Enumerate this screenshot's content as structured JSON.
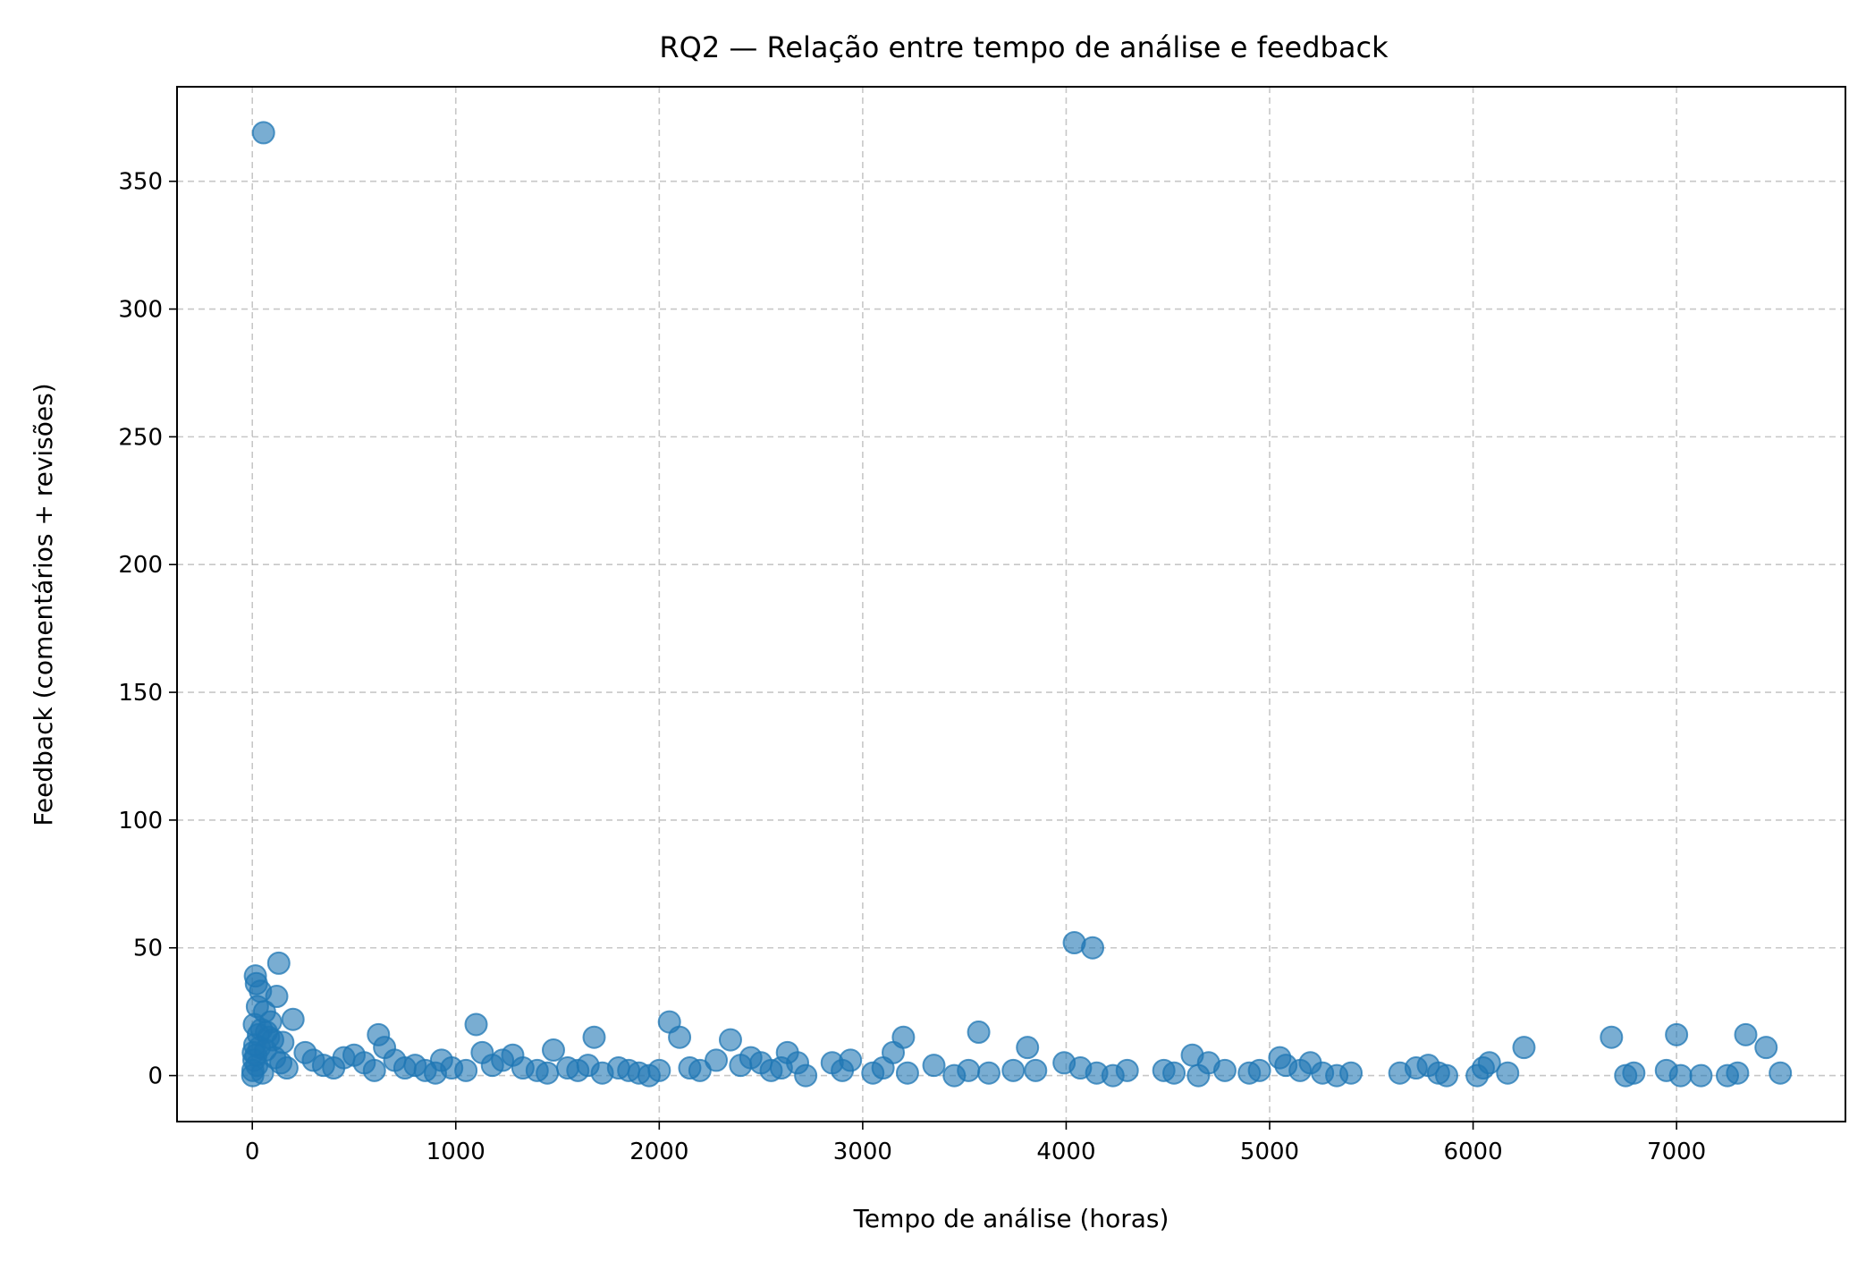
{
  "chart_data": {
    "type": "scatter",
    "title": "RQ2 — Relação entre tempo de análise e feedback",
    "xlabel": "Tempo de análise (horas)",
    "ylabel": "Feedback (comentários + revisões)",
    "xlim": [
      -370,
      7830
    ],
    "ylim": [
      -18,
      387
    ],
    "xticks": [
      0,
      1000,
      2000,
      3000,
      4000,
      5000,
      6000,
      7000
    ],
    "yticks": [
      0,
      50,
      100,
      150,
      200,
      250,
      300,
      350
    ],
    "grid": true,
    "color": "#1f77b4",
    "points": [
      [
        55,
        369
      ],
      [
        4040,
        52
      ],
      [
        4130,
        50
      ],
      [
        130,
        44
      ],
      [
        15,
        39
      ],
      [
        20,
        36
      ],
      [
        40,
        33
      ],
      [
        120,
        31
      ],
      [
        25,
        27
      ],
      [
        60,
        25
      ],
      [
        200,
        22
      ],
      [
        90,
        21
      ],
      [
        10,
        20
      ],
      [
        45,
        18
      ],
      [
        70,
        17
      ],
      [
        30,
        16
      ],
      [
        80,
        15
      ],
      [
        100,
        14
      ],
      [
        150,
        13
      ],
      [
        12,
        12
      ],
      [
        35,
        11
      ],
      [
        65,
        10
      ],
      [
        5,
        9
      ],
      [
        18,
        8
      ],
      [
        110,
        7
      ],
      [
        8,
        6
      ],
      [
        140,
        5
      ],
      [
        22,
        4
      ],
      [
        170,
        3
      ],
      [
        3,
        2
      ],
      [
        50,
        1
      ],
      [
        2,
        0
      ],
      [
        260,
        9
      ],
      [
        300,
        6
      ],
      [
        350,
        4
      ],
      [
        400,
        3
      ],
      [
        450,
        7
      ],
      [
        500,
        8
      ],
      [
        550,
        5
      ],
      [
        600,
        2
      ],
      [
        620,
        16
      ],
      [
        650,
        11
      ],
      [
        700,
        6
      ],
      [
        750,
        3
      ],
      [
        800,
        4
      ],
      [
        850,
        2
      ],
      [
        900,
        1
      ],
      [
        930,
        6
      ],
      [
        980,
        3
      ],
      [
        1050,
        2
      ],
      [
        1100,
        20
      ],
      [
        1130,
        9
      ],
      [
        1180,
        4
      ],
      [
        1230,
        6
      ],
      [
        1280,
        8
      ],
      [
        1330,
        3
      ],
      [
        1400,
        2
      ],
      [
        1450,
        1
      ],
      [
        1480,
        10
      ],
      [
        1550,
        3
      ],
      [
        1600,
        2
      ],
      [
        1650,
        4
      ],
      [
        1680,
        15
      ],
      [
        1720,
        1
      ],
      [
        1800,
        3
      ],
      [
        1850,
        2
      ],
      [
        1900,
        1
      ],
      [
        1950,
        0
      ],
      [
        2000,
        2
      ],
      [
        2050,
        21
      ],
      [
        2100,
        15
      ],
      [
        2150,
        3
      ],
      [
        2200,
        2
      ],
      [
        2280,
        6
      ],
      [
        2350,
        14
      ],
      [
        2400,
        4
      ],
      [
        2450,
        7
      ],
      [
        2500,
        5
      ],
      [
        2550,
        2
      ],
      [
        2600,
        3
      ],
      [
        2630,
        9
      ],
      [
        2680,
        5
      ],
      [
        2720,
        0
      ],
      [
        2850,
        5
      ],
      [
        2900,
        2
      ],
      [
        2940,
        6
      ],
      [
        3050,
        1
      ],
      [
        3100,
        3
      ],
      [
        3150,
        9
      ],
      [
        3200,
        15
      ],
      [
        3220,
        1
      ],
      [
        3350,
        4
      ],
      [
        3450,
        0
      ],
      [
        3520,
        2
      ],
      [
        3570,
        17
      ],
      [
        3620,
        1
      ],
      [
        3740,
        2
      ],
      [
        3810,
        11
      ],
      [
        3850,
        2
      ],
      [
        3990,
        5
      ],
      [
        4070,
        3
      ],
      [
        4150,
        1
      ],
      [
        4230,
        0
      ],
      [
        4300,
        2
      ],
      [
        4480,
        2
      ],
      [
        4530,
        1
      ],
      [
        4620,
        8
      ],
      [
        4650,
        0
      ],
      [
        4700,
        5
      ],
      [
        4780,
        2
      ],
      [
        4900,
        1
      ],
      [
        4950,
        2
      ],
      [
        5050,
        7
      ],
      [
        5080,
        4
      ],
      [
        5150,
        2
      ],
      [
        5200,
        5
      ],
      [
        5260,
        1
      ],
      [
        5330,
        0
      ],
      [
        5400,
        1
      ],
      [
        5640,
        1
      ],
      [
        5720,
        3
      ],
      [
        5780,
        4
      ],
      [
        5830,
        1
      ],
      [
        5870,
        0
      ],
      [
        6020,
        0
      ],
      [
        6050,
        3
      ],
      [
        6080,
        5
      ],
      [
        6170,
        1
      ],
      [
        6250,
        11
      ],
      [
        6680,
        15
      ],
      [
        6750,
        0
      ],
      [
        6790,
        1
      ],
      [
        6950,
        2
      ],
      [
        7000,
        16
      ],
      [
        7020,
        0
      ],
      [
        7120,
        0
      ],
      [
        7250,
        0
      ],
      [
        7300,
        1
      ],
      [
        7340,
        16
      ],
      [
        7440,
        11
      ],
      [
        7510,
        1
      ]
    ]
  }
}
